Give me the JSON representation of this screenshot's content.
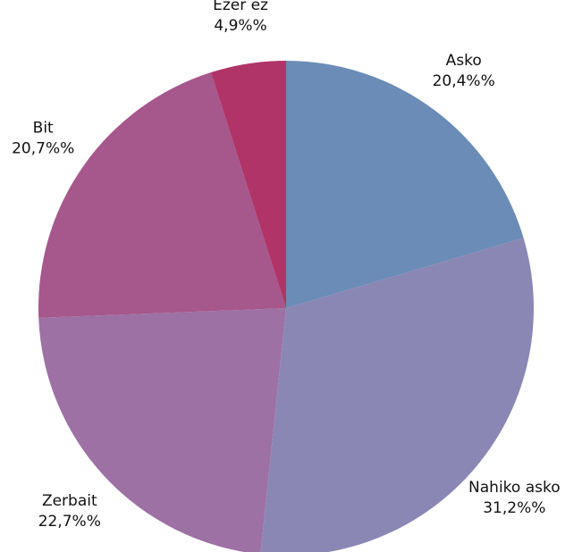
{
  "chart_data": {
    "type": "pie",
    "categories": [
      "Asko",
      "Nahiko asko",
      "Zerbait",
      "Bit",
      "Ezer ez"
    ],
    "values": [
      20.4,
      31.2,
      22.7,
      20.7,
      4.9
    ],
    "value_labels": [
      "20,4%%",
      "31,2%%",
      "22,7%%",
      "20,7%%",
      "4,9%%"
    ],
    "colors": [
      "#6b8cb6",
      "#8a87b5",
      "#9d71a4",
      "#a6578c",
      "#b03468"
    ]
  }
}
